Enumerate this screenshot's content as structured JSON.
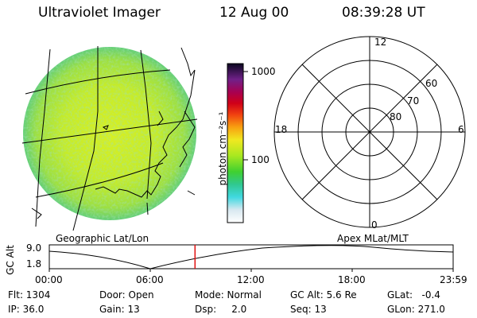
{
  "header": {
    "title": "Ultraviolet Imager",
    "date": "12 Aug 00",
    "time": "08:39:28 UT"
  },
  "colorbar": {
    "unit_label": "photon cm⁻²s⁻¹",
    "ticks": [
      "1000",
      "100"
    ]
  },
  "left_map": {
    "caption": "Geographic Lat/Lon"
  },
  "polar_plot": {
    "caption": "Apex MLat/MLT",
    "mlt_labels": {
      "top": "12",
      "left": "18",
      "right": "6",
      "bottom": "0"
    },
    "lat_labels": [
      "60",
      "70",
      "80"
    ]
  },
  "timeline": {
    "ylabel": "GC Alt",
    "ytick_top": "9.0",
    "ytick_bottom": "1.8",
    "xticks": [
      "00:00",
      "06:00",
      "12:00",
      "18:00",
      "23:59"
    ],
    "marker_time_hours": 8.66
  },
  "info": {
    "flt": "Flt: 1304",
    "ip": "IP: 36.0",
    "door": "Door: Open",
    "gain": "Gain: 13",
    "mode": "Mode: Normal",
    "dsp": "Dsp:     2.0",
    "gcalt": "GC Alt: 5.6 Re",
    "seq": "Seq: 13",
    "glat": "GLat:   -0.4",
    "glon": "GLon: 271.0"
  }
}
